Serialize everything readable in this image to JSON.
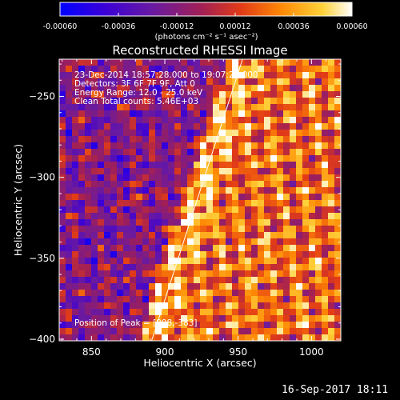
{
  "colorbar": {
    "tick_labels": [
      "-0.00060",
      "-0.00036",
      "-0.00012",
      "0.00012",
      "0.00036",
      "0.00060"
    ],
    "range": [
      -0.0006,
      0.0006
    ],
    "unit_label": "(photons cm⁻² s⁻¹ asec⁻²)",
    "colors": [
      "#0000ff",
      "#3a00d8",
      "#6a1aa0",
      "#a01f57",
      "#e23b17",
      "#ff8a05",
      "#ffd23a",
      "#ffffff"
    ]
  },
  "chart_data": {
    "type": "heatmap",
    "title": "Reconstructed RHESSI Image",
    "xlabel": "Heliocentric X (arcsec)",
    "ylabel": "Heliocentric Y (arcsec)",
    "xlim": [
      828,
      1020
    ],
    "ylim": [
      -401,
      -227
    ],
    "x_ticks": [
      850,
      900,
      950,
      1000
    ],
    "y_ticks": [
      -250,
      -300,
      -350,
      -400
    ],
    "annotations": [
      "23-Dec-2014 18:57:28.000 to 19:07:28.000",
      "Detectors: 3F 6F 7F 9F, Att 0",
      "Energy Range: 12.0 - 25.0 keV",
      "Clean   Total counts: 5.46E+03"
    ],
    "peak_label": "Position of Peak = [898,-383]",
    "peak": [
      898,
      -383
    ],
    "limb_line": {
      "x": [
        891,
        953
      ],
      "y": [
        -401,
        -227
      ]
    },
    "grid": false
  },
  "footer": {
    "date": "16-Sep-2017 18:11"
  }
}
